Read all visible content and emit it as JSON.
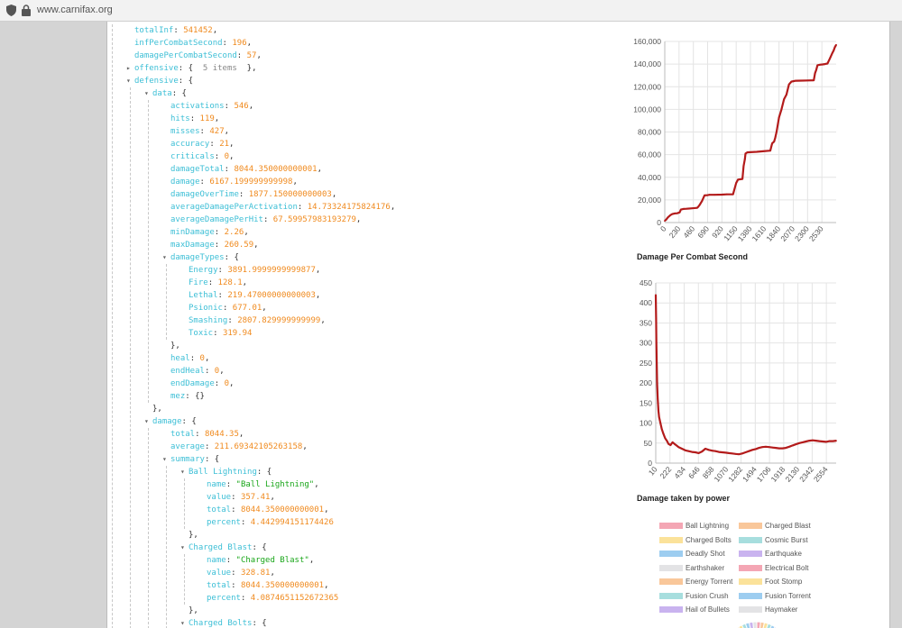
{
  "browser": {
    "url": "www.carnifax.org"
  },
  "tree": [
    {
      "i": 0,
      "key": "totalInf",
      "val": "541452",
      "t": "num",
      "c": true
    },
    {
      "i": 0,
      "key": "infPerCombatSecond",
      "val": "196",
      "t": "num",
      "c": true
    },
    {
      "i": 0,
      "key": "damagePerCombatSecond",
      "val": "57",
      "t": "num",
      "c": true
    },
    {
      "i": 0,
      "key": "offensive",
      "arrow": "▸",
      "open": "{",
      "meta": "5 items",
      "close": "},"
    },
    {
      "i": 0,
      "key": "defensive",
      "arrow": "▾",
      "open": "{"
    },
    {
      "i": 1,
      "key": "data",
      "arrow": "▾",
      "open": "{"
    },
    {
      "i": 2,
      "key": "activations",
      "val": "546",
      "t": "num",
      "c": true
    },
    {
      "i": 2,
      "key": "hits",
      "val": "119",
      "t": "num",
      "c": true
    },
    {
      "i": 2,
      "key": "misses",
      "val": "427",
      "t": "num",
      "c": true
    },
    {
      "i": 2,
      "key": "accuracy",
      "val": "21",
      "t": "num",
      "c": true
    },
    {
      "i": 2,
      "key": "criticals",
      "val": "0",
      "t": "num",
      "c": true
    },
    {
      "i": 2,
      "key": "damageTotal",
      "val": "8044.350000000001",
      "t": "num",
      "c": true
    },
    {
      "i": 2,
      "key": "damage",
      "val": "6167.199999999998",
      "t": "num",
      "c": true
    },
    {
      "i": 2,
      "key": "damageOverTime",
      "val": "1877.150000000003",
      "t": "num",
      "c": true
    },
    {
      "i": 2,
      "key": "averageDamagePerActivation",
      "val": "14.73324175824176",
      "t": "num",
      "c": true
    },
    {
      "i": 2,
      "key": "averageDamagePerHit",
      "val": "67.59957983193279",
      "t": "num",
      "c": true
    },
    {
      "i": 2,
      "key": "minDamage",
      "val": "2.26",
      "t": "num",
      "c": true
    },
    {
      "i": 2,
      "key": "maxDamage",
      "val": "260.59",
      "t": "num",
      "c": true
    },
    {
      "i": 2,
      "key": "damageTypes",
      "arrow": "▾",
      "open": "{"
    },
    {
      "i": 3,
      "key": "Energy",
      "val": "3891.9999999999877",
      "t": "num",
      "c": true
    },
    {
      "i": 3,
      "key": "Fire",
      "val": "128.1",
      "t": "num",
      "c": true
    },
    {
      "i": 3,
      "key": "Lethal",
      "val": "219.47000000000003",
      "t": "num",
      "c": true
    },
    {
      "i": 3,
      "key": "Psionic",
      "val": "677.01",
      "t": "num",
      "c": true
    },
    {
      "i": 3,
      "key": "Smashing",
      "val": "2807.829999999999",
      "t": "num",
      "c": true
    },
    {
      "i": 3,
      "key": "Toxic",
      "val": "319.94",
      "t": "num",
      "c": false
    },
    {
      "i": 2,
      "close": "},"
    },
    {
      "i": 2,
      "key": "heal",
      "val": "0",
      "t": "num",
      "c": true
    },
    {
      "i": 2,
      "key": "endHeal",
      "val": "0",
      "t": "num",
      "c": true
    },
    {
      "i": 2,
      "key": "endDamage",
      "val": "0",
      "t": "num",
      "c": true
    },
    {
      "i": 2,
      "key": "mez",
      "val": "{}",
      "t": "punc",
      "c": false
    },
    {
      "i": 1,
      "close": "},"
    },
    {
      "i": 1,
      "key": "damage",
      "arrow": "▾",
      "open": "{"
    },
    {
      "i": 2,
      "key": "total",
      "val": "8044.35",
      "t": "num",
      "c": true
    },
    {
      "i": 2,
      "key": "average",
      "val": "211.69342105263158",
      "t": "num",
      "c": true
    },
    {
      "i": 2,
      "key": "summary",
      "arrow": "▾",
      "open": "{"
    },
    {
      "i": 3,
      "key": "Ball Lightning",
      "arrow": "▾",
      "open": "{"
    },
    {
      "i": 4,
      "key": "name",
      "val": "\"Ball Lightning\"",
      "t": "str",
      "c": true
    },
    {
      "i": 4,
      "key": "value",
      "val": "357.41",
      "t": "num",
      "c": true
    },
    {
      "i": 4,
      "key": "total",
      "val": "8044.350000000001",
      "t": "num",
      "c": true
    },
    {
      "i": 4,
      "key": "percent",
      "val": "4.442994151174426",
      "t": "num",
      "c": false
    },
    {
      "i": 3,
      "close": "},"
    },
    {
      "i": 3,
      "key": "Charged Blast",
      "arrow": "▾",
      "open": "{"
    },
    {
      "i": 4,
      "key": "name",
      "val": "\"Charged Blast\"",
      "t": "str",
      "c": true
    },
    {
      "i": 4,
      "key": "value",
      "val": "328.81",
      "t": "num",
      "c": true
    },
    {
      "i": 4,
      "key": "total",
      "val": "8044.350000000001",
      "t": "num",
      "c": true
    },
    {
      "i": 4,
      "key": "percent",
      "val": "4.0874651152672365",
      "t": "num",
      "c": false
    },
    {
      "i": 3,
      "close": "},"
    },
    {
      "i": 3,
      "key": "Charged Bolts",
      "arrow": "▾",
      "open": "{"
    },
    {
      "i": 4,
      "key": "name",
      "val": "\"Charged Bolts\"",
      "t": "str",
      "c": true
    }
  ],
  "chart_data": [
    {
      "type": "line",
      "title": "",
      "xlabel": "",
      "ylabel": "",
      "xlim": [
        0,
        2760
      ],
      "ylim": [
        0,
        160000
      ],
      "yticks": [
        "0",
        "20,000",
        "40,000",
        "60,000",
        "80,000",
        "100,000",
        "120,000",
        "140,000",
        "160,000"
      ],
      "xticks": [
        "0",
        "230",
        "460",
        "690",
        "920",
        "1150",
        "1380",
        "1610",
        "1840",
        "2070",
        "2300",
        "2530"
      ],
      "color": "#b31b1b",
      "grid": true,
      "x": [
        0,
        20,
        50,
        90,
        120,
        160,
        200,
        240,
        260,
        300,
        350,
        420,
        520,
        540,
        560,
        600,
        640,
        690,
        720,
        800,
        920,
        1000,
        1100,
        1140,
        1150,
        1180,
        1250,
        1270,
        1290,
        1300,
        1330,
        1380,
        1480,
        1580,
        1700,
        1720,
        1730,
        1760,
        1780,
        1800,
        1840,
        1880,
        1920,
        1960,
        2000,
        2040,
        2080,
        2100,
        2120,
        2200,
        2300,
        2400,
        2420,
        2440,
        2460,
        2500,
        2540,
        2580,
        2620,
        2660,
        2700,
        2720,
        2740,
        2760
      ],
      "y": [
        1500,
        2500,
        4500,
        6500,
        7500,
        8000,
        8200,
        9000,
        11500,
        12000,
        12200,
        12500,
        13000,
        14000,
        15500,
        19000,
        24000,
        24200,
        24500,
        24500,
        24700,
        24900,
        25000,
        33000,
        35000,
        38000,
        38500,
        50000,
        56000,
        61000,
        62000,
        62200,
        62500,
        63000,
        63500,
        68000,
        70000,
        71500,
        75000,
        80000,
        93000,
        100000,
        109000,
        113000,
        122000,
        124500,
        125000,
        125200,
        125300,
        125400,
        125500,
        125700,
        132000,
        135000,
        139000,
        139500,
        139700,
        140000,
        140500,
        145000,
        150000,
        152000,
        155000,
        157000
      ]
    },
    {
      "type": "line",
      "title": "Damage Per Combat Second",
      "xlabel": "",
      "ylabel": "",
      "xlim": [
        10,
        2700
      ],
      "ylim": [
        0,
        450
      ],
      "yticks": [
        "0",
        "50",
        "100",
        "150",
        "200",
        "250",
        "300",
        "350",
        "400",
        "450"
      ],
      "xticks": [
        "10",
        "222",
        "434",
        "646",
        "858",
        "1070",
        "1282",
        "1494",
        "1706",
        "1918",
        "2130",
        "2342",
        "2554"
      ],
      "color": "#b31b1b",
      "grid": true,
      "x": [
        10,
        15,
        20,
        25,
        30,
        40,
        50,
        60,
        80,
        100,
        120,
        150,
        180,
        200,
        230,
        260,
        290,
        320,
        350,
        400,
        450,
        500,
        550,
        600,
        650,
        700,
        750,
        800,
        850,
        900,
        950,
        1000,
        1050,
        1100,
        1150,
        1200,
        1250,
        1300,
        1350,
        1400,
        1450,
        1500,
        1550,
        1600,
        1650,
        1700,
        1750,
        1800,
        1850,
        1900,
        1950,
        2000,
        2050,
        2100,
        2150,
        2200,
        2250,
        2300,
        2350,
        2400,
        2450,
        2500,
        2550,
        2600,
        2650,
        2700
      ],
      "y": [
        420,
        360,
        300,
        250,
        200,
        160,
        130,
        115,
        100,
        85,
        75,
        62,
        55,
        48,
        45,
        52,
        48,
        44,
        40,
        36,
        32,
        30,
        28,
        27,
        25,
        29,
        36,
        33,
        31,
        30,
        28,
        27,
        26,
        25,
        24,
        23,
        22,
        24,
        27,
        30,
        33,
        35,
        38,
        40,
        41,
        40,
        39,
        38,
        37,
        37,
        38,
        41,
        44,
        47,
        50,
        52,
        54,
        56,
        57,
        56,
        55,
        54,
        53,
        55,
        55,
        56
      ]
    }
  ],
  "chart3": {
    "title": "Damage taken by power",
    "legend": [
      {
        "label": "Ball Lightning",
        "color": "#f4a6b4"
      },
      {
        "label": "Charged Blast",
        "color": "#f9c79a"
      },
      {
        "label": "Charged Bolts",
        "color": "#fbe29a"
      },
      {
        "label": "Cosmic Burst",
        "color": "#a7dede"
      },
      {
        "label": "Deadly Shot",
        "color": "#9dcdf0"
      },
      {
        "label": "Earthquake",
        "color": "#c9b3ef"
      },
      {
        "label": "Earthshaker",
        "color": "#e3e3e5"
      },
      {
        "label": "Electrical Bolt",
        "color": "#f4a6b4"
      },
      {
        "label": "Energy Torrent",
        "color": "#f9c79a"
      },
      {
        "label": "Foot Stomp",
        "color": "#fbe29a"
      },
      {
        "label": "Fusion Crush",
        "color": "#a7dede"
      },
      {
        "label": "Fusion Torrent",
        "color": "#9dcdf0"
      },
      {
        "label": "Hail of Bullets",
        "color": "#c9b3ef"
      },
      {
        "label": "Haymaker",
        "color": "#e3e3e5"
      }
    ]
  }
}
